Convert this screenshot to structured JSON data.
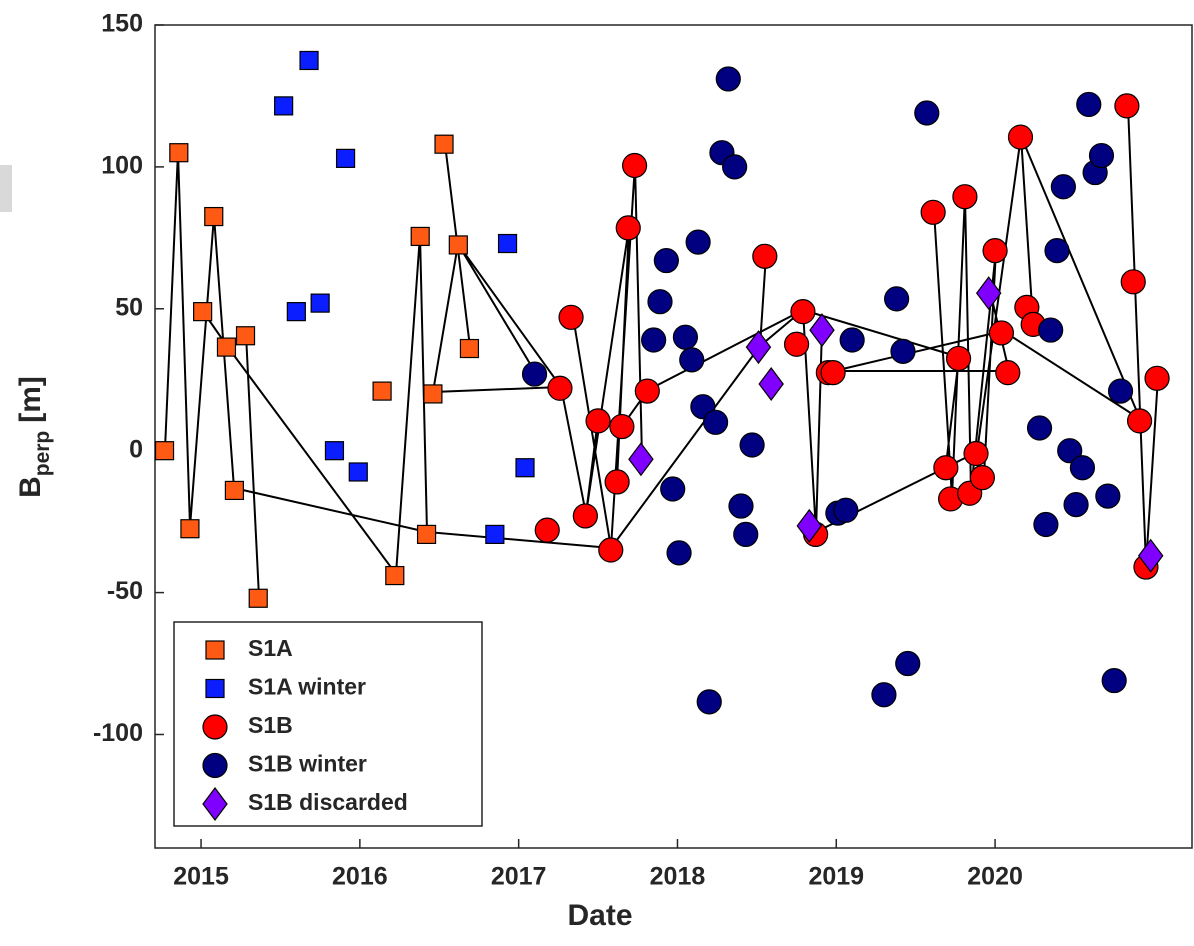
{
  "chart_data": {
    "type": "scatter",
    "xlabel": "Date",
    "ylabel": {
      "main": "B",
      "sub": "perp",
      "unit": "[m]"
    },
    "xlim": [
      2014.71,
      2021.24
    ],
    "ylim": [
      -140,
      150
    ],
    "xticks": [
      2015,
      2016,
      2017,
      2018,
      2019,
      2020
    ],
    "yticks": [
      150,
      100,
      50,
      0,
      -50,
      -100
    ],
    "legend": "lower left",
    "series": [
      {
        "name": "S1A",
        "color": "#ff5a14",
        "marker": "square",
        "x": [
          2014.77,
          2014.86,
          2014.93,
          2015.08,
          2015.01,
          2015.16,
          2015.28,
          2015.21,
          2015.36,
          2016.14,
          2016.22,
          2016.38,
          2016.42,
          2016.46,
          2016.53,
          2016.62,
          2016.69
        ],
        "values": [
          0,
          105,
          -27.5,
          82.5,
          49,
          36.5,
          40.5,
          -14,
          -52,
          21,
          -44,
          75.5,
          -29.5,
          20,
          108,
          72.5,
          36
        ]
      },
      {
        "name": "S1A winter",
        "color": "#0a1eff",
        "marker": "square",
        "x": [
          2015.52,
          2015.68,
          2015.91,
          2015.6,
          2015.75,
          2015.84,
          2015.99,
          2016.85,
          2016.93,
          2017.04
        ],
        "values": [
          121.5,
          137.5,
          103,
          49,
          52,
          0,
          -7.5,
          -29.5,
          73,
          -6
        ]
      },
      {
        "name": "S1B",
        "color": "#ff0000",
        "marker": "circle",
        "x": [
          2017.18,
          2017.26,
          2017.33,
          2017.42,
          2017.5,
          2017.58,
          2017.62,
          2017.65,
          2017.69,
          2017.73,
          2017.81,
          2018.55,
          2018.75,
          2018.79,
          2018.87,
          2018.95,
          2018.98,
          2019.61,
          2019.69,
          2019.72,
          2019.77,
          2019.81,
          2019.84,
          2019.88,
          2019.92,
          2020.0,
          2020.04,
          2020.08,
          2020.16,
          2020.2,
          2020.24,
          2020.83,
          2020.87,
          2020.91,
          2020.95,
          2021.02
        ],
        "values": [
          -28,
          22,
          47,
          -23,
          10.5,
          -35,
          -11,
          8.5,
          78.5,
          100.5,
          21,
          68.5,
          37.5,
          49,
          -29.5,
          27.5,
          27.5,
          84,
          -6,
          -17,
          32.5,
          89.5,
          -15,
          -1,
          -9.5,
          70.5,
          41.5,
          27.5,
          110.5,
          50.5,
          44.5,
          121.5,
          59.5,
          10.5,
          -41,
          25.5
        ]
      },
      {
        "name": "S1B winter",
        "color": "#000080",
        "marker": "circle",
        "x": [
          2017.1,
          2017.85,
          2017.89,
          2017.93,
          2017.97,
          2018.01,
          2018.05,
          2018.09,
          2018.13,
          2018.16,
          2018.2,
          2018.24,
          2018.28,
          2018.32,
          2018.36,
          2018.4,
          2018.43,
          2018.47,
          2019.01,
          2019.06,
          2019.1,
          2019.3,
          2019.38,
          2019.42,
          2019.45,
          2019.57,
          2020.28,
          2020.32,
          2020.35,
          2020.39,
          2020.43,
          2020.47,
          2020.51,
          2020.55,
          2020.59,
          2020.63,
          2020.67,
          2020.71,
          2020.75,
          2020.79
        ],
        "values": [
          27,
          39,
          52.5,
          67,
          -13.5,
          -36,
          40,
          32,
          73.5,
          15.5,
          -88.5,
          10,
          105,
          131,
          100,
          -19.5,
          -29.5,
          2,
          -22,
          -21,
          39,
          -86,
          53.5,
          35,
          -75,
          119,
          8,
          -26,
          42.5,
          70.5,
          93,
          0,
          -19,
          -6,
          122,
          98,
          104,
          -16,
          -81,
          21
        ]
      },
      {
        "name": "S1B discarded",
        "color": "#8000ff",
        "marker": "diamond",
        "x": [
          2017.77,
          2018.51,
          2018.59,
          2018.83,
          2018.91,
          2019.96,
          2020.98
        ],
        "values": [
          -3,
          36.5,
          23.5,
          -26.5,
          42.5,
          55.5,
          -37
        ]
      }
    ]
  }
}
